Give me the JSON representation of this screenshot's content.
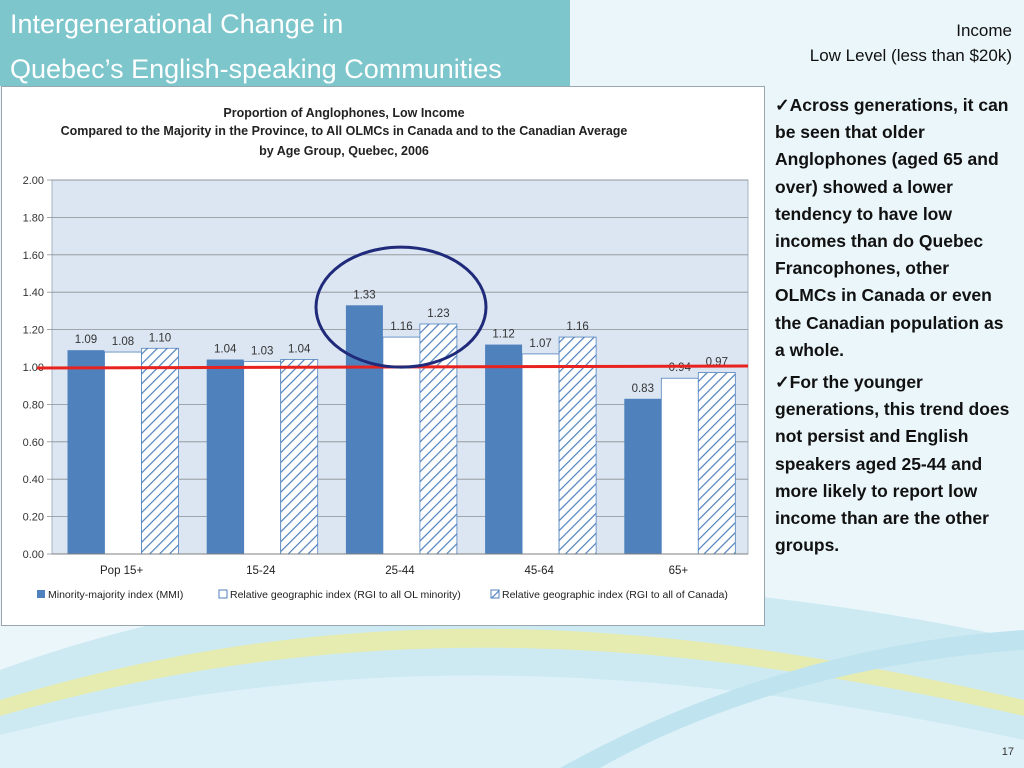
{
  "slide": {
    "title_line1": "Intergenerational Change in",
    "title_line2": "Quebec’s English-speaking Communities",
    "header_line1": "Income",
    "header_line2": "Low Level (less than $20k)",
    "bullets": [
      "Across generations, it can be seen that older Anglophones (aged 65 and over) showed a lower tendency to have low incomes than do Quebec Francophones, other OLMCs in Canada or even the Canadian population as a whole.",
      "For the younger generations, this trend does not persist and English speakers aged 25-44 and more likely to report low income than are the other groups."
    ],
    "bullet_glyph": "✓",
    "page_number": "17",
    "colors": {
      "title_band": "#7dc6cc",
      "mmi": "#4f81bd",
      "reference_line": "#e8231f",
      "highlight_circle": "#1f2a7a",
      "plot_bg": "#dce6f2"
    }
  },
  "chart_data": {
    "type": "bar",
    "title_lines": [
      "Proportion of Anglophones, Low Income",
      "Compared to the Majority in the Province, to All OLMCs in Canada and to the Canadian Average",
      "by Age Group, Quebec, 2006"
    ],
    "categories": [
      "Pop 15+",
      "15-24",
      "25-44",
      "45-64",
      "65+"
    ],
    "series": [
      {
        "name": "Minority-majority index (MMI)",
        "values": [
          1.09,
          1.04,
          1.33,
          1.12,
          0.83
        ],
        "style": "solid-blue"
      },
      {
        "name": "Relative geographic index (RGI to all OL minority)",
        "values": [
          1.08,
          1.03,
          1.16,
          1.07,
          0.94
        ],
        "style": "white"
      },
      {
        "name": "Relative geographic index (RGI to all of Canada)",
        "values": [
          1.1,
          1.04,
          1.23,
          1.16,
          0.97
        ],
        "style": "hatched"
      }
    ],
    "value_labels": [
      [
        "1.09",
        "1.04",
        "1.33",
        "1.12",
        "0.83"
      ],
      [
        "1.08",
        "1.03",
        "1.16",
        "1.07",
        "0.94"
      ],
      [
        "1.10",
        "1.04",
        "1.23",
        "1.16",
        "0.97"
      ]
    ],
    "ylim": [
      0,
      2
    ],
    "y_ticks": [
      "0.00",
      "0.20",
      "0.40",
      "0.60",
      "0.80",
      "1.00",
      "1.20",
      "1.40",
      "1.60",
      "1.80",
      "2.00"
    ],
    "reference_line_value": 1.0,
    "highlighted_category": "25-44",
    "grid": true,
    "legend_position": "bottom"
  }
}
